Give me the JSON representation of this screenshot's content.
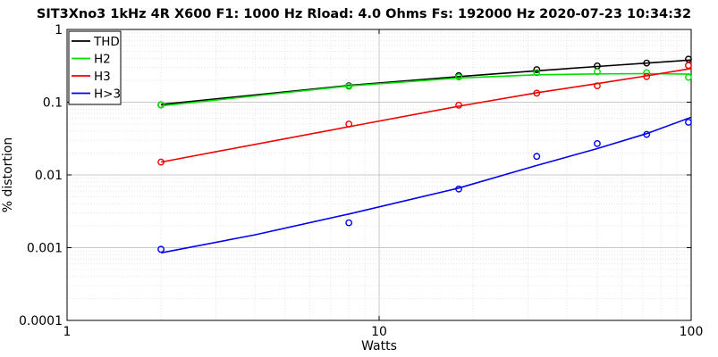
{
  "chart_data": {
    "type": "scatter",
    "title": "SIT3Xno3 1kHz 4R X600   F1: 1000 Hz   Rload: 4.0 Ohms   Fs: 192000 Hz  2020-07-23 10:34:32",
    "xlabel": "Watts",
    "ylabel": "% distortion",
    "xscale": "log",
    "yscale": "log",
    "xlim": [
      1,
      100
    ],
    "ylim": [
      0.0001,
      1
    ],
    "x_ticks": [
      1,
      10,
      100
    ],
    "x_tick_labels": [
      "1",
      "10",
      "100"
    ],
    "y_ticks": [
      0.0001,
      0.001,
      0.01,
      0.1,
      1
    ],
    "y_tick_labels": [
      "0.0001",
      "0.001",
      "0.01",
      "0.1",
      "1"
    ],
    "grid": true,
    "legend_position": "top-left",
    "x": [
      2,
      8,
      18,
      32,
      50,
      72,
      98
    ],
    "series": [
      {
        "name": "THD",
        "color": "#000000",
        "values": [
          0.092,
          0.168,
          0.232,
          0.28,
          0.315,
          0.345,
          0.39
        ],
        "fit": [
          [
            2,
            0.093
          ],
          [
            8,
            0.17
          ],
          [
            18,
            0.225
          ],
          [
            32,
            0.27
          ],
          [
            50,
            0.31
          ],
          [
            72,
            0.345
          ],
          [
            100,
            0.38
          ]
        ]
      },
      {
        "name": "H2",
        "color": "#00dd00",
        "values": [
          0.092,
          0.165,
          0.222,
          0.255,
          0.262,
          0.255,
          0.22
        ],
        "fit": [
          [
            2,
            0.089
          ],
          [
            8,
            0.167
          ],
          [
            18,
            0.215
          ],
          [
            32,
            0.238
          ],
          [
            50,
            0.245
          ],
          [
            72,
            0.247
          ],
          [
            100,
            0.243
          ]
        ]
      },
      {
        "name": "H3",
        "color": "#ee0000",
        "values": [
          0.015,
          0.05,
          0.091,
          0.133,
          0.168,
          0.225,
          0.32
        ],
        "fit": [
          [
            2,
            0.015
          ],
          [
            8,
            0.046
          ],
          [
            18,
            0.088
          ],
          [
            32,
            0.135
          ],
          [
            50,
            0.18
          ],
          [
            72,
            0.23
          ],
          [
            100,
            0.29
          ]
        ]
      },
      {
        "name": "H>3",
        "color": "#0000ee",
        "values": [
          0.00095,
          0.0022,
          0.0064,
          0.018,
          0.027,
          0.036,
          0.053
        ],
        "fit": [
          [
            2,
            0.00085
          ],
          [
            4,
            0.0015
          ],
          [
            8,
            0.0029
          ],
          [
            18,
            0.0066
          ],
          [
            32,
            0.0135
          ],
          [
            50,
            0.023
          ],
          [
            72,
            0.037
          ],
          [
            100,
            0.062
          ]
        ]
      }
    ]
  }
}
